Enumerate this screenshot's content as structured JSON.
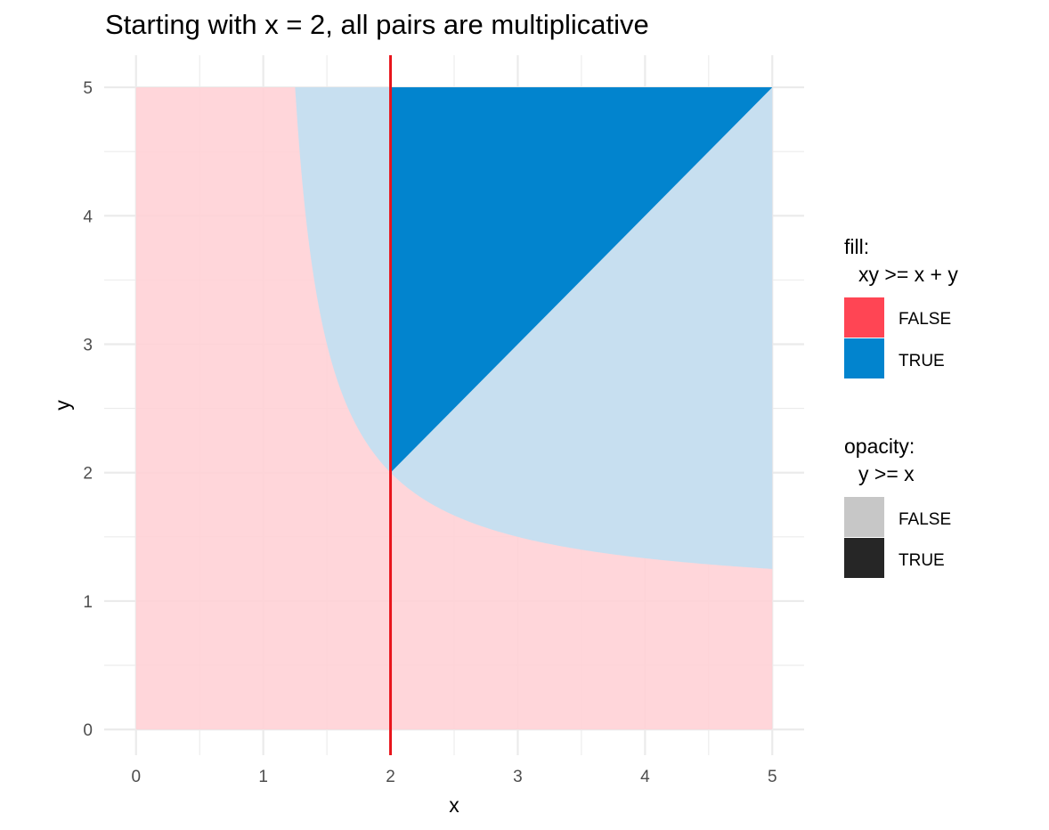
{
  "chart_data": {
    "type": "area",
    "title": "Starting with x = 2, all pairs are multiplicative",
    "xlabel": "x",
    "ylabel": "y",
    "xlim": [
      -0.25,
      5.25
    ],
    "ylim": [
      -0.2,
      5.25
    ],
    "x_ticks": [
      "0",
      "1",
      "2",
      "3",
      "4",
      "5"
    ],
    "y_ticks": [
      "0",
      "1",
      "2",
      "3",
      "4",
      "5"
    ],
    "grid": true,
    "data_extent": {
      "x": [
        0,
        5
      ],
      "y": [
        0,
        5
      ]
    },
    "regions": [
      {
        "fill": "FALSE",
        "opacity": "FALSE",
        "condition": "xy < x + y, y < x"
      },
      {
        "fill": "FALSE",
        "opacity": "TRUE",
        "condition": "xy < x + y, y >= x"
      },
      {
        "fill": "TRUE",
        "opacity": "FALSE",
        "condition": "xy >= x + y, y < x"
      },
      {
        "fill": "TRUE",
        "opacity": "TRUE",
        "condition": "xy >= x + y, y >= x"
      }
    ],
    "boundary_curve": "y = x / (x - 1)",
    "boundary_points": [
      {
        "x": 1.25,
        "y": 5.0
      },
      {
        "x": 1.5,
        "y": 3.0
      },
      {
        "x": 2.0,
        "y": 2.0
      },
      {
        "x": 3.0,
        "y": 1.5
      },
      {
        "x": 4.0,
        "y": 1.333
      },
      {
        "x": 5.0,
        "y": 1.25
      }
    ],
    "vertical_line": {
      "x": 2,
      "color": "#e8141b"
    },
    "legend_position": "right",
    "legends": [
      {
        "title_line1": "fill:",
        "title_line2": "xy >= x + y",
        "entries": [
          {
            "label": "FALSE",
            "color": "#ff4554"
          },
          {
            "label": "TRUE",
            "color": "#0284ce"
          }
        ]
      },
      {
        "title_line1": "opacity:",
        "title_line2": "y >= x",
        "entries": [
          {
            "label": "FALSE",
            "color": "#c7c7c7"
          },
          {
            "label": "TRUE",
            "color": "#262626"
          }
        ]
      }
    ],
    "colors": {
      "false_light": "#ffd1d6",
      "true_light": "#c4dff1",
      "true_dark": "#0284ce",
      "grid": "#ebebeb"
    }
  }
}
